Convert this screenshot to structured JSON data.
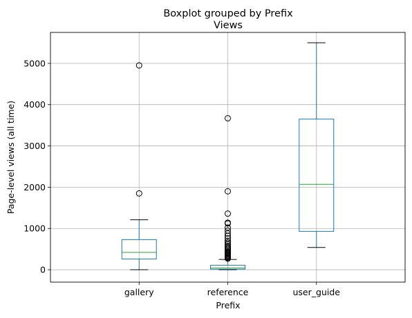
{
  "chart_data": {
    "type": "boxplot",
    "suptitle": "Boxplot grouped by Prefix",
    "title": "Views",
    "xlabel": "Prefix",
    "ylabel": "Page-level views (all time)",
    "ylim": [
      -300,
      5750
    ],
    "yticks": [
      0,
      1000,
      2000,
      3000,
      4000,
      5000
    ],
    "grid": true,
    "categories": [
      "gallery",
      "reference",
      "user_guide"
    ],
    "boxes": [
      {
        "name": "gallery",
        "whisker_low": 0,
        "q1": 260,
        "median": 420,
        "q3": 730,
        "whisker_high": 1210,
        "outliers": [
          1850,
          4950
        ]
      },
      {
        "name": "reference",
        "whisker_low": 0,
        "q1": 15,
        "median": 45,
        "q3": 110,
        "whisker_high": 250,
        "outliers": [
          270,
          290,
          310,
          330,
          350,
          370,
          390,
          410,
          430,
          460,
          490,
          520,
          550,
          580,
          620,
          660,
          700,
          760,
          820,
          880,
          950,
          1020,
          1120,
          1140,
          1360,
          1900,
          3670
        ]
      },
      {
        "name": "user_guide",
        "whisker_low": 540,
        "q1": 930,
        "median": 2070,
        "q3": 3650,
        "whisker_high": 5500,
        "outliers": []
      }
    ],
    "colors": {
      "box": "#1f77b4",
      "median": "#2ca02c",
      "whisker": "#000000",
      "grid": "#b0b0b0",
      "flier": "#000000"
    }
  }
}
